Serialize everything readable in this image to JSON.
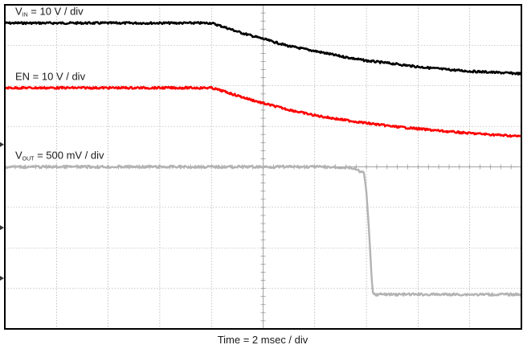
{
  "chart_data": {
    "type": "line",
    "xlabel": "Time = 2 msec / div",
    "x_unit": "div",
    "divisions": {
      "x": 10,
      "y": 8
    },
    "grid": true,
    "series": [
      {
        "name": "VIN",
        "label_main": "V",
        "label_sub": "IN",
        "label_rest": "= 10 V / div",
        "color": "#000000",
        "x": [
          0,
          1,
          2,
          3,
          4,
          4.2,
          4.6,
          5,
          5.5,
          6,
          6.5,
          7,
          7.5,
          8,
          8.5,
          9,
          9.5,
          10
        ],
        "y": [
          7.55,
          7.55,
          7.55,
          7.55,
          7.55,
          7.47,
          7.3,
          7.16,
          6.98,
          6.86,
          6.73,
          6.62,
          6.55,
          6.47,
          6.41,
          6.36,
          6.33,
          6.3
        ]
      },
      {
        "name": "EN",
        "label_main": "EN",
        "label_sub": "",
        "label_rest": "= 10 V / div",
        "color": "#ff0000",
        "x": [
          0,
          1,
          2,
          3,
          4,
          4.2,
          4.6,
          5,
          5.5,
          6,
          6.5,
          7,
          7.5,
          8,
          8.5,
          9,
          9.5,
          10
        ],
        "y": [
          5.95,
          5.95,
          5.95,
          5.95,
          5.95,
          5.88,
          5.72,
          5.57,
          5.41,
          5.27,
          5.17,
          5.08,
          5.0,
          4.94,
          4.88,
          4.83,
          4.79,
          4.75
        ]
      },
      {
        "name": "VOUT",
        "label_main": "V",
        "label_sub": "OUT",
        "label_rest": "= 500 mV / div",
        "color": "#b3b3b3",
        "x": [
          0,
          1,
          2,
          3,
          4,
          5,
          6,
          6.7,
          6.95,
          7.0,
          7.05,
          7.1,
          7.12,
          7.15,
          7.2,
          8,
          9,
          10
        ],
        "y": [
          4.0,
          4.0,
          4.0,
          4.0,
          4.0,
          4.0,
          4.0,
          3.98,
          3.85,
          3.4,
          2.4,
          1.3,
          0.9,
          0.85,
          0.85,
          0.85,
          0.85,
          0.85
        ]
      }
    ],
    "ground_markers": [
      "VIN",
      "EN",
      "VOUT"
    ]
  }
}
